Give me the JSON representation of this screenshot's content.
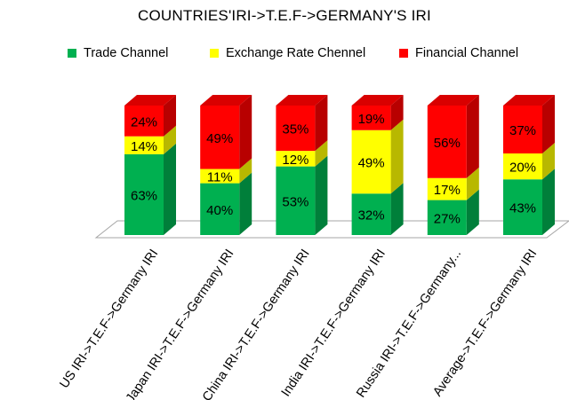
{
  "chart_data": {
    "type": "bar",
    "stacked": true,
    "percent_stacked": true,
    "three_d": true,
    "title": "COUNTRIES'IRI->T.E.F->GERMANY'S IRI",
    "categories": [
      "US IRI->T.E.F->Germany IRI",
      "Japan IRI->T.E.F->Germany IRI",
      "China IRI->T.E.F->Germany IRI",
      "India IRI->T.E.F->Germany IRI",
      "Russia IRI->T.E.F->Germany...",
      "Average->T.E.F->Germany IRI"
    ],
    "series": [
      {
        "name": "Trade Channel",
        "color": "#00B050",
        "values": [
          63,
          40,
          53,
          32,
          27,
          43
        ]
      },
      {
        "name": "Exchange Rate Chennel",
        "color": "#FFFF00",
        "values": [
          14,
          11,
          12,
          49,
          17,
          20
        ]
      },
      {
        "name": "Financial Channel",
        "color": "#FF0000",
        "values": [
          24,
          49,
          35,
          19,
          56,
          37
        ]
      }
    ],
    "data_label_suffix": "%",
    "legend_position": "top",
    "grid": false
  }
}
